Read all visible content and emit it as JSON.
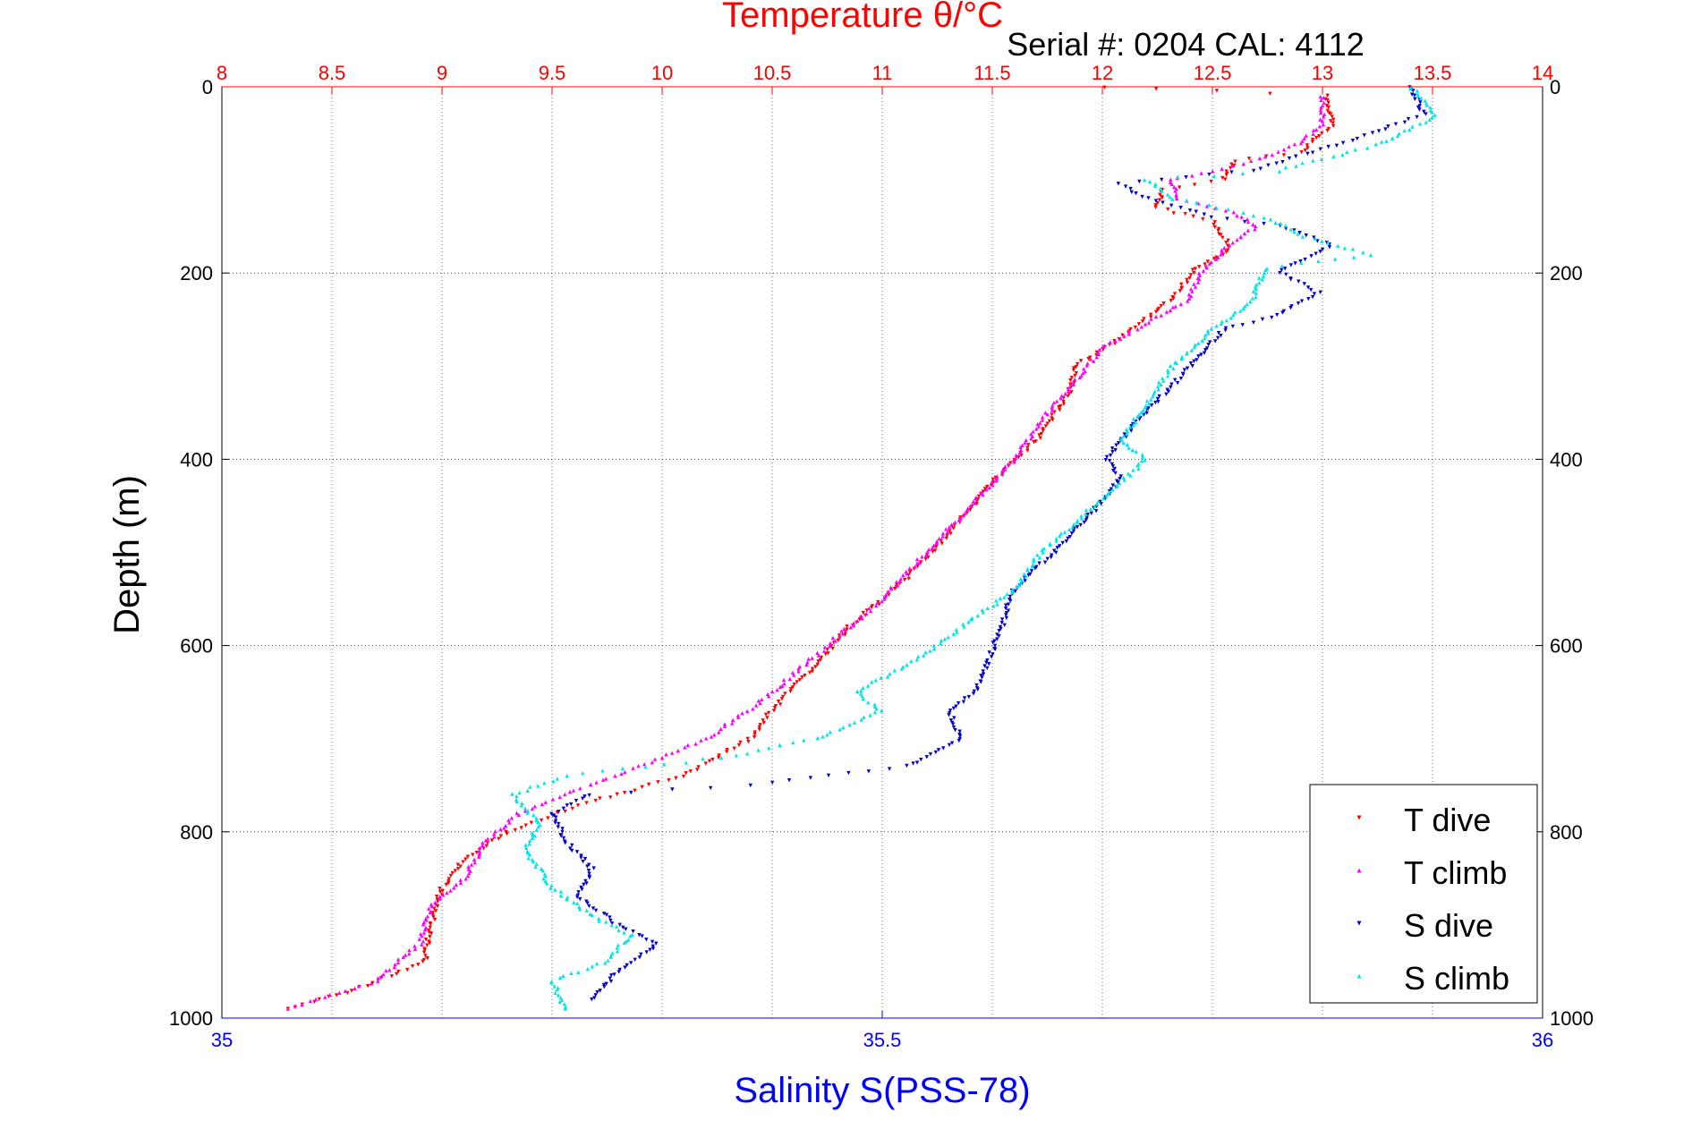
{
  "chart_data": {
    "type": "scatter",
    "title": "Temperature θ/°C",
    "subtitle": "Serial #: 0204  CAL: 4112",
    "ylabel": "Depth (m)",
    "xlabel_bottom": "Salinity S(PSS-78)",
    "xlabel_top": "Temperature θ/°C",
    "ylim": [
      0,
      1000
    ],
    "y_reversed": true,
    "xlim_temperature": [
      8,
      14
    ],
    "xlim_salinity": [
      35,
      36
    ],
    "y_ticks": [
      "0",
      "200",
      "400",
      "600",
      "800",
      "1000"
    ],
    "temperature_ticks": [
      "8",
      "8.5",
      "9",
      "9.5",
      "10",
      "10.5",
      "11",
      "11.5",
      "12",
      "12.5",
      "13",
      "13.5",
      "14"
    ],
    "salinity_ticks": [
      "35",
      "35.5",
      "36"
    ],
    "grid": true,
    "legend_position": "bottom-right",
    "colors": {
      "temperature_axis": "#ff0000",
      "salinity_axis": "#0000ff",
      "t_dive": "#ff0000",
      "t_climb": "#ff00ff",
      "s_dive": "#0000cc",
      "s_climb": "#00e5e5"
    },
    "series": [
      {
        "name": "T dive",
        "axis": "temperature",
        "marker": "triangle-down",
        "points": [
          [
            12.0,
            0
          ],
          [
            13.02,
            10
          ],
          [
            13.05,
            40
          ],
          [
            12.9,
            70
          ],
          [
            12.6,
            80
          ],
          [
            12.55,
            100
          ],
          [
            12.28,
            110
          ],
          [
            12.25,
            130
          ],
          [
            12.5,
            145
          ],
          [
            12.55,
            160
          ],
          [
            12.58,
            175
          ],
          [
            12.42,
            195
          ],
          [
            12.35,
            220
          ],
          [
            12.2,
            250
          ],
          [
            12.05,
            275
          ],
          [
            11.88,
            300
          ],
          [
            11.85,
            330
          ],
          [
            11.7,
            380
          ],
          [
            11.6,
            400
          ],
          [
            11.45,
            440
          ],
          [
            11.3,
            480
          ],
          [
            11.1,
            530
          ],
          [
            10.85,
            580
          ],
          [
            10.7,
            620
          ],
          [
            10.5,
            670
          ],
          [
            10.4,
            700
          ],
          [
            10.1,
            740
          ],
          [
            9.65,
            770
          ],
          [
            9.3,
            800
          ],
          [
            9.1,
            830
          ],
          [
            9.0,
            860
          ],
          [
            8.95,
            900
          ],
          [
            8.92,
            940
          ],
          [
            8.6,
            970
          ],
          [
            8.3,
            990
          ]
        ]
      },
      {
        "name": "T climb",
        "axis": "temperature",
        "marker": "triangle-up",
        "points": [
          [
            13.0,
            10
          ],
          [
            13.0,
            40
          ],
          [
            12.9,
            60
          ],
          [
            12.75,
            75
          ],
          [
            12.6,
            85
          ],
          [
            12.3,
            100
          ],
          [
            12.35,
            120
          ],
          [
            12.6,
            135
          ],
          [
            12.7,
            150
          ],
          [
            12.55,
            175
          ],
          [
            12.45,
            200
          ],
          [
            12.38,
            230
          ],
          [
            12.15,
            260
          ],
          [
            12.0,
            280
          ],
          [
            11.9,
            310
          ],
          [
            11.75,
            350
          ],
          [
            11.6,
            400
          ],
          [
            11.4,
            450
          ],
          [
            11.2,
            500
          ],
          [
            11.0,
            550
          ],
          [
            10.8,
            590
          ],
          [
            10.6,
            630
          ],
          [
            10.45,
            660
          ],
          [
            10.2,
            700
          ],
          [
            9.9,
            730
          ],
          [
            9.55,
            760
          ],
          [
            9.35,
            780
          ],
          [
            9.2,
            810
          ],
          [
            9.1,
            850
          ],
          [
            8.95,
            880
          ],
          [
            8.9,
            920
          ],
          [
            8.7,
            960
          ],
          [
            8.3,
            990
          ]
        ]
      },
      {
        "name": "S dive",
        "axis": "salinity",
        "marker": "triangle-down",
        "points": [
          [
            35.9,
            0
          ],
          [
            35.91,
            30
          ],
          [
            35.85,
            60
          ],
          [
            35.78,
            90
          ],
          [
            35.68,
            105
          ],
          [
            35.7,
            120
          ],
          [
            35.75,
            140
          ],
          [
            35.8,
            150
          ],
          [
            35.84,
            170
          ],
          [
            35.8,
            200
          ],
          [
            35.83,
            220
          ],
          [
            35.8,
            245
          ],
          [
            35.76,
            260
          ],
          [
            35.74,
            290
          ],
          [
            35.72,
            320
          ],
          [
            35.7,
            350
          ],
          [
            35.68,
            380
          ],
          [
            35.67,
            400
          ],
          [
            35.68,
            420
          ],
          [
            35.67,
            440
          ],
          [
            35.65,
            470
          ],
          [
            35.63,
            500
          ],
          [
            35.6,
            540
          ],
          [
            35.59,
            580
          ],
          [
            35.58,
            620
          ],
          [
            35.57,
            650
          ],
          [
            35.55,
            670
          ],
          [
            35.56,
            700
          ],
          [
            35.52,
            730
          ],
          [
            35.4,
            750
          ],
          [
            35.28,
            760
          ],
          [
            35.25,
            780
          ],
          [
            35.26,
            810
          ],
          [
            35.28,
            840
          ],
          [
            35.27,
            870
          ],
          [
            35.3,
            900
          ],
          [
            35.33,
            920
          ],
          [
            35.3,
            950
          ],
          [
            35.28,
            980
          ]
        ]
      },
      {
        "name": "S climb",
        "axis": "salinity",
        "marker": "triangle-up",
        "points": [
          [
            35.9,
            0
          ],
          [
            35.92,
            30
          ],
          [
            35.88,
            60
          ],
          [
            35.8,
            90
          ],
          [
            35.7,
            100
          ],
          [
            35.72,
            120
          ],
          [
            35.79,
            140
          ],
          [
            35.82,
            160
          ],
          [
            35.87,
            180
          ],
          [
            35.79,
            195
          ],
          [
            35.78,
            230
          ],
          [
            35.75,
            260
          ],
          [
            35.72,
            300
          ],
          [
            35.7,
            340
          ],
          [
            35.68,
            380
          ],
          [
            35.7,
            400
          ],
          [
            35.66,
            450
          ],
          [
            35.62,
            500
          ],
          [
            35.6,
            540
          ],
          [
            35.56,
            580
          ],
          [
            35.52,
            620
          ],
          [
            35.48,
            650
          ],
          [
            35.5,
            670
          ],
          [
            35.45,
            700
          ],
          [
            35.38,
            720
          ],
          [
            35.26,
            740
          ],
          [
            35.22,
            760
          ],
          [
            35.24,
            790
          ],
          [
            35.23,
            820
          ],
          [
            35.25,
            860
          ],
          [
            35.28,
            890
          ],
          [
            35.31,
            910
          ],
          [
            35.29,
            940
          ],
          [
            35.25,
            960
          ],
          [
            35.26,
            990
          ]
        ]
      }
    ]
  }
}
